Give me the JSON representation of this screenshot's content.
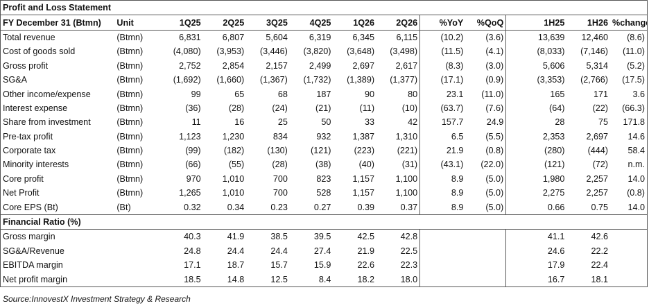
{
  "title": "Profit and Loss Statement",
  "header": {
    "label": "FY December 31 (Btmn)",
    "unit": "Unit",
    "cols": [
      "1Q25",
      "2Q25",
      "3Q25",
      "4Q25",
      "1Q26",
      "2Q26",
      "%YoY",
      "%QoQ",
      "1H25",
      "1H26",
      "%change"
    ]
  },
  "rows": [
    {
      "label": "Total revenue",
      "unit": "(Btmn)",
      "v": [
        "6,831",
        "6,807",
        "5,604",
        "6,319",
        "6,345",
        "6,115",
        "(10.2)",
        "(3.6)",
        "13,639",
        "12,460",
        "(8.6)"
      ]
    },
    {
      "label": "Cost of goods sold",
      "unit": "(Btmn)",
      "v": [
        "(4,080)",
        "(3,953)",
        "(3,446)",
        "(3,820)",
        "(3,648)",
        "(3,498)",
        "(11.5)",
        "(4.1)",
        "(8,033)",
        "(7,146)",
        "(11.0)"
      ]
    },
    {
      "label": "Gross profit",
      "unit": "(Btmn)",
      "v": [
        "2,752",
        "2,854",
        "2,157",
        "2,499",
        "2,697",
        "2,617",
        "(8.3)",
        "(3.0)",
        "5,606",
        "5,314",
        "(5.2)"
      ]
    },
    {
      "label": "SG&A",
      "unit": "(Btmn)",
      "v": [
        "(1,692)",
        "(1,660)",
        "(1,367)",
        "(1,732)",
        "(1,389)",
        "(1,377)",
        "(17.1)",
        "(0.9)",
        "(3,353)",
        "(2,766)",
        "(17.5)"
      ]
    },
    {
      "label": "Other income/expense",
      "unit": "(Btmn)",
      "v": [
        "99",
        "65",
        "68",
        "187",
        "90",
        "80",
        "23.1",
        "(11.0)",
        "165",
        "171",
        "3.6"
      ]
    },
    {
      "label": "Interest expense",
      "unit": "(Btmn)",
      "v": [
        "(36)",
        "(28)",
        "(24)",
        "(21)",
        "(11)",
        "(10)",
        "(63.7)",
        "(7.6)",
        "(64)",
        "(22)",
        "(66.3)"
      ]
    },
    {
      "label": "Share from investment",
      "unit": "(Btmn)",
      "v": [
        "11",
        "16",
        "25",
        "50",
        "33",
        "42",
        "157.7",
        "24.9",
        "28",
        "75",
        "171.8"
      ]
    },
    {
      "label": "Pre-tax profit",
      "unit": "(Btmn)",
      "v": [
        "1,123",
        "1,230",
        "834",
        "932",
        "1,387",
        "1,310",
        "6.5",
        "(5.5)",
        "2,353",
        "2,697",
        "14.6"
      ]
    },
    {
      "label": "Corporate tax",
      "unit": "(Btmn)",
      "v": [
        "(99)",
        "(182)",
        "(130)",
        "(121)",
        "(223)",
        "(221)",
        "21.9",
        "(0.8)",
        "(280)",
        "(444)",
        "58.4"
      ]
    },
    {
      "label": "Minority interests",
      "unit": "(Btmn)",
      "v": [
        "(66)",
        "(55)",
        "(28)",
        "(38)",
        "(40)",
        "(31)",
        "(43.1)",
        "(22.0)",
        "(121)",
        "(72)",
        "n.m."
      ]
    },
    {
      "label": "Core profit",
      "unit": "(Btmn)",
      "v": [
        "970",
        "1,010",
        "700",
        "823",
        "1,157",
        "1,100",
        "8.9",
        "(5.0)",
        "1,980",
        "2,257",
        "14.0"
      ]
    },
    {
      "label": "Net Profit",
      "unit": "(Btmn)",
      "v": [
        "1,265",
        "1,010",
        "700",
        "528",
        "1,157",
        "1,100",
        "8.9",
        "(5.0)",
        "2,275",
        "2,257",
        "(0.8)"
      ]
    },
    {
      "label": "Core EPS (Bt)",
      "unit": "(Bt)",
      "v": [
        "0.32",
        "0.34",
        "0.23",
        "0.27",
        "0.39",
        "0.37",
        "8.9",
        "(5.0)",
        "0.66",
        "0.75",
        "14.0"
      ]
    }
  ],
  "ratio_title": "Financial Ratio (%)",
  "ratios": [
    {
      "label": "Gross margin",
      "v": [
        "40.3",
        "41.9",
        "38.5",
        "39.5",
        "42.5",
        "42.8",
        "",
        "",
        "41.1",
        "42.6",
        ""
      ]
    },
    {
      "label": "SG&A/Revenue",
      "v": [
        "24.8",
        "24.4",
        "24.4",
        "27.4",
        "21.9",
        "22.5",
        "",
        "",
        "24.6",
        "22.2",
        ""
      ]
    },
    {
      "label": "EBITDA margin",
      "v": [
        "17.1",
        "18.7",
        "15.7",
        "15.9",
        "22.6",
        "22.3",
        "",
        "",
        "17.9",
        "22.4",
        ""
      ]
    },
    {
      "label": "Net profit margin",
      "v": [
        "18.5",
        "14.8",
        "12.5",
        "8.4",
        "18.2",
        "18.0",
        "",
        "",
        "16.7",
        "18.1",
        ""
      ]
    }
  ],
  "source": "Source:InnovestX Investment Strategy & Research"
}
